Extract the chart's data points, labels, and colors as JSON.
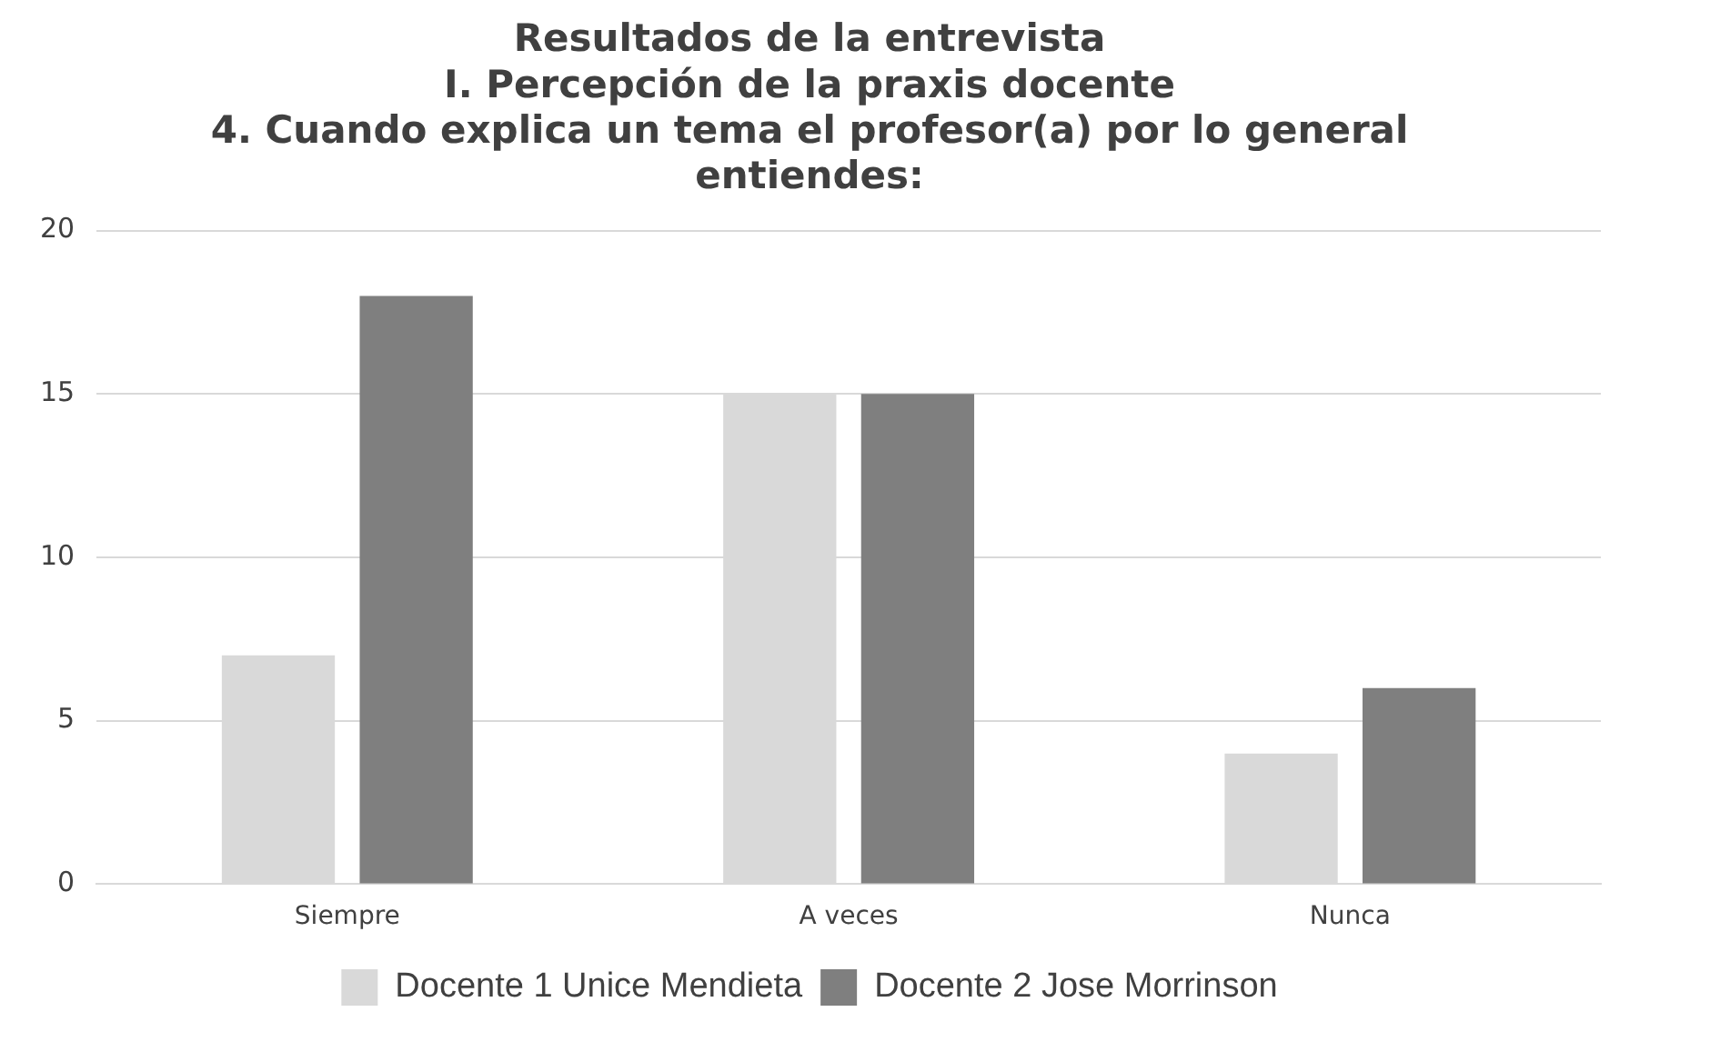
{
  "chart_data": {
    "type": "bar",
    "title": "Resultados de la entrevista\nI. Percepción de la praxis docente\n4. Cuando explica un tema el profesor(a) por lo general\nentiendes:",
    "categories": [
      "Siempre",
      "A veces",
      "Nunca"
    ],
    "series": [
      {
        "name": "Docente 1 Unice Mendieta",
        "color": "#d9d9d9",
        "values": [
          7,
          15,
          4
        ]
      },
      {
        "name": "Docente 2 Jose Morrinson",
        "color": "#7f7f7f",
        "values": [
          18,
          15,
          6
        ]
      }
    ],
    "ylim": [
      0,
      20
    ],
    "yticks": [
      0,
      5,
      10,
      15,
      20
    ],
    "grid": "y",
    "legend": "bottom"
  }
}
